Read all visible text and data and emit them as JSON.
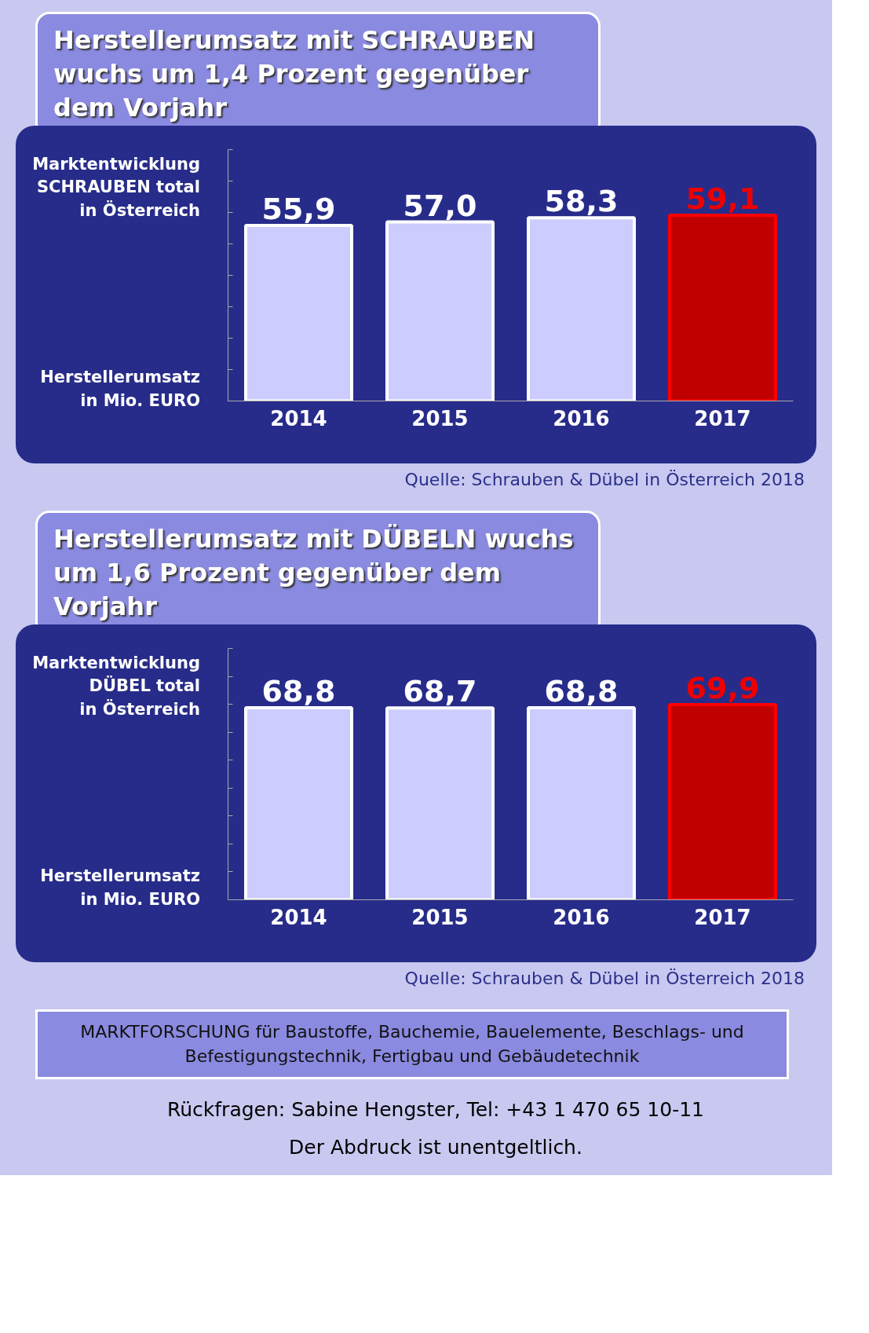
{
  "chart_data": [
    {
      "type": "bar",
      "title": "Herstellerumsatz mit SCHRAUBEN wuchs um 1,4 Prozent gegenüber dem Vorjahr",
      "ylabel": "Marktentwicklung\nSCHRAUBEN total\nin Österreich",
      "categories": [
        "2014",
        "2015",
        "2016",
        "2017"
      ],
      "values": [
        55.9,
        57.0,
        58.3,
        59.1
      ],
      "value_labels": [
        "55,9",
        "57,0",
        "58,3",
        "59,1"
      ],
      "colors": [
        "#ccccff",
        "#ccccff",
        "#ccccff",
        "#c00000"
      ],
      "ylim": [
        0,
        80
      ],
      "yticks": [
        {
          "value": 0,
          "label": null
        },
        {
          "value": 10,
          "label": null
        },
        {
          "value": 20,
          "label": null
        },
        {
          "value": 30,
          "label": null
        },
        {
          "value": 40,
          "label": null
        },
        {
          "value": 50,
          "label": null
        },
        {
          "value": 60,
          "label": null
        },
        {
          "value": 70,
          "label": null
        },
        {
          "value": 80,
          "label": null
        }
      ],
      "tick_labels": "x",
      "annotations": [
        "Herstellerumsatz\nin Mio. EURO",
        "Quelle: Schrauben & Dübel in Österreich 2018"
      ]
    },
    {
      "type": "bar",
      "title": "Herstellerumsatz mit DÜBELN wuchs um 1,6 Prozent gegenüber dem Vorjahr",
      "ylabel": "Marktentwicklung\nDÜBEL total\nin Österreich",
      "categories": [
        "2014",
        "2015",
        "2016",
        "2017"
      ],
      "values": [
        68.8,
        68.7,
        68.8,
        69.9
      ],
      "value_labels": [
        "68,8",
        "68,7",
        "68,8",
        "69,9"
      ],
      "colors": [
        "#ccccff",
        "#ccccff",
        "#ccccff",
        "#c00000"
      ],
      "ylim": [
        0,
        90
      ],
      "yticks": [
        {
          "value": 0,
          "label": null
        },
        {
          "value": 10,
          "label": null
        },
        {
          "value": 20,
          "label": null
        },
        {
          "value": 30,
          "label": null
        },
        {
          "value": 40,
          "label": null
        },
        {
          "value": 50,
          "label": null
        },
        {
          "value": 60,
          "label": null
        },
        {
          "value": 70,
          "label": null
        },
        {
          "value": 80,
          "label": null
        },
        {
          "value": 90,
          "label": null
        }
      ],
      "tick_labels": "x",
      "annotations": [
        "Herstellerumsatz\nin Mio. EURO",
        "Quelle: Schrauben & Dübel in Österreich 2018",
        "MARKTFORSCHUNG für Baustoffe, Bauchemie, Bauelemente, Beschlags- und Befestigungstechnik, Fertigbau und Gebäudetechnik",
        "Rückfragen: Sabine Hengster, Tel: +43 1 470 65 10-11",
        "Der Abdruck ist unentgeltlich."
      ]
    }
  ]
}
